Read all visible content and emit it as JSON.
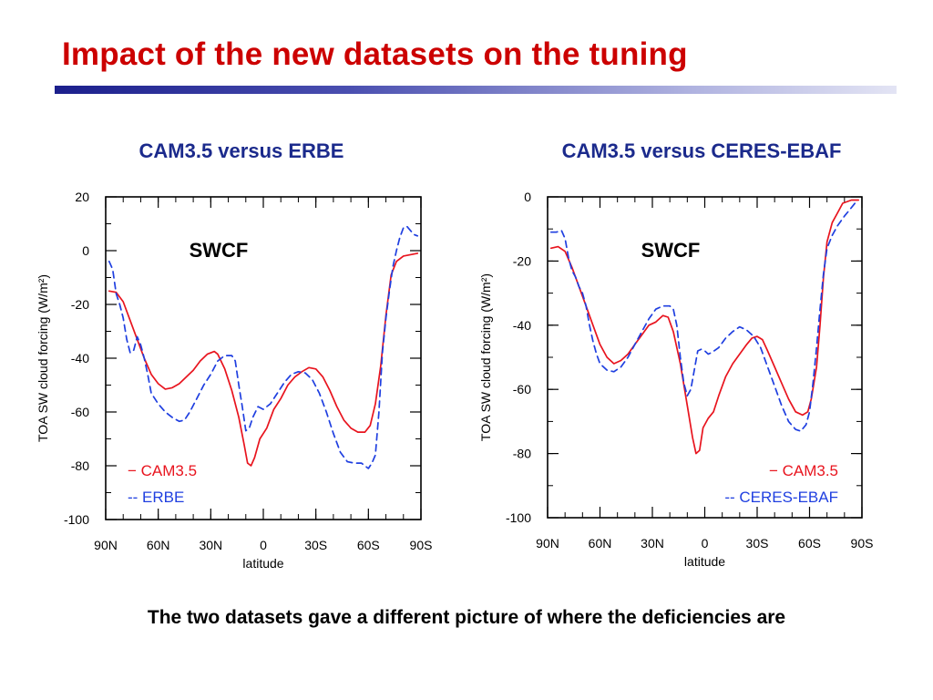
{
  "slide": {
    "title": "Impact of the new datasets on the tuning",
    "caption": "The two datasets gave a different picture of where the deficiencies are"
  },
  "colors": {
    "title": "#cc0000",
    "heading": "#1b2a8c",
    "model_line": "#e8141e",
    "obs_line": "#1f3fe0"
  },
  "panels": [
    {
      "heading": "CAM3.5 versus ERBE"
    },
    {
      "heading": "CAM3.5 versus CERES-EBAF"
    }
  ],
  "chart_data": [
    {
      "type": "line",
      "title": "SWCF",
      "xlabel": "latitude",
      "ylabel": "TOA SW cloud forcing (W/m²)",
      "xlim": [
        90,
        -90
      ],
      "ylim": [
        -100,
        20
      ],
      "xticks": [
        90,
        60,
        30,
        0,
        -30,
        -60,
        -90
      ],
      "xtick_labels": [
        "90N",
        "60N",
        "30N",
        "0",
        "30S",
        "60S",
        "90S"
      ],
      "yticks": [
        20,
        0,
        -20,
        -40,
        -60,
        -80,
        -100
      ],
      "ytick_labels": [
        "20",
        "0",
        "-20",
        "-40",
        "-60",
        "-80",
        "-100"
      ],
      "legend_position": "bottom-left",
      "series": [
        {
          "name": "CAM3.5",
          "legend_label": "− CAM3.5",
          "style": "solid",
          "color": "#e8141e",
          "points": [
            [
              88,
              -15
            ],
            [
              84,
              -15.5
            ],
            [
              80,
              -19
            ],
            [
              76,
              -26
            ],
            [
              72,
              -33
            ],
            [
              68,
              -40
            ],
            [
              64,
              -46
            ],
            [
              60,
              -49.5
            ],
            [
              56,
              -51.5
            ],
            [
              52,
              -51
            ],
            [
              48,
              -49.5
            ],
            [
              44,
              -47
            ],
            [
              40,
              -44.5
            ],
            [
              36,
              -41
            ],
            [
              32,
              -38.5
            ],
            [
              28,
              -37.5
            ],
            [
              26,
              -38.5
            ],
            [
              22,
              -44
            ],
            [
              18,
              -52
            ],
            [
              14,
              -62
            ],
            [
              11,
              -72
            ],
            [
              9,
              -79
            ],
            [
              7,
              -80
            ],
            [
              5,
              -77
            ],
            [
              2,
              -70
            ],
            [
              -2,
              -66
            ],
            [
              -6,
              -59
            ],
            [
              -10,
              -55
            ],
            [
              -14,
              -50
            ],
            [
              -18,
              -47
            ],
            [
              -22,
              -45
            ],
            [
              -26,
              -43.5
            ],
            [
              -30,
              -44
            ],
            [
              -34,
              -47
            ],
            [
              -38,
              -52
            ],
            [
              -42,
              -58
            ],
            [
              -46,
              -63
            ],
            [
              -50,
              -66
            ],
            [
              -54,
              -67.5
            ],
            [
              -58,
              -67.5
            ],
            [
              -61,
              -65
            ],
            [
              -64,
              -57
            ],
            [
              -67,
              -43
            ],
            [
              -70,
              -24
            ],
            [
              -73,
              -9
            ],
            [
              -76,
              -4
            ],
            [
              -80,
              -2
            ],
            [
              -84,
              -1.5
            ],
            [
              -88,
              -1
            ]
          ]
        },
        {
          "name": "ERBE",
          "legend_label": "-- ERBE",
          "style": "dashed",
          "color": "#1f3fe0",
          "points": [
            [
              88,
              -4
            ],
            [
              86,
              -7
            ],
            [
              84,
              -16
            ],
            [
              82,
              -20
            ],
            [
              80,
              -25
            ],
            [
              78,
              -33
            ],
            [
              76,
              -38
            ],
            [
              74,
              -37
            ],
            [
              72,
              -32
            ],
            [
              70,
              -35
            ],
            [
              68,
              -40
            ],
            [
              66,
              -46
            ],
            [
              64,
              -53
            ],
            [
              60,
              -57
            ],
            [
              56,
              -60
            ],
            [
              52,
              -62
            ],
            [
              48,
              -63.5
            ],
            [
              45,
              -63
            ],
            [
              42,
              -60
            ],
            [
              38,
              -55
            ],
            [
              34,
              -50
            ],
            [
              30,
              -46
            ],
            [
              26,
              -41
            ],
            [
              22,
              -39
            ],
            [
              18,
              -39
            ],
            [
              16,
              -41
            ],
            [
              14,
              -50
            ],
            [
              12,
              -58
            ],
            [
              10,
              -67
            ],
            [
              8,
              -66
            ],
            [
              6,
              -62
            ],
            [
              3,
              -58
            ],
            [
              0,
              -59
            ],
            [
              -4,
              -57
            ],
            [
              -8,
              -53
            ],
            [
              -12,
              -49
            ],
            [
              -16,
              -46
            ],
            [
              -20,
              -45
            ],
            [
              -24,
              -45.5
            ],
            [
              -28,
              -48
            ],
            [
              -32,
              -53
            ],
            [
              -36,
              -60
            ],
            [
              -40,
              -68
            ],
            [
              -44,
              -75
            ],
            [
              -48,
              -78.5
            ],
            [
              -52,
              -79
            ],
            [
              -56,
              -79
            ],
            [
              -58,
              -80
            ],
            [
              -60,
              -81
            ],
            [
              -62,
              -79
            ],
            [
              -64,
              -76
            ],
            [
              -66,
              -60
            ],
            [
              -68,
              -38
            ],
            [
              -70,
              -25
            ],
            [
              -72,
              -15
            ],
            [
              -74,
              -6
            ],
            [
              -76,
              0
            ],
            [
              -78,
              5
            ],
            [
              -80,
              8.5
            ],
            [
              -82,
              9
            ],
            [
              -84,
              7.5
            ],
            [
              -86,
              6
            ],
            [
              -88,
              5.5
            ]
          ]
        }
      ]
    },
    {
      "type": "line",
      "title": "SWCF",
      "xlabel": "latitude",
      "ylabel": "TOA SW cloud forcing (W/m²)",
      "xlim": [
        90,
        -90
      ],
      "ylim": [
        -100,
        0
      ],
      "xticks": [
        90,
        60,
        30,
        0,
        -30,
        -60,
        -90
      ],
      "xtick_labels": [
        "90N",
        "60N",
        "30N",
        "0",
        "30S",
        "60S",
        "90S"
      ],
      "yticks": [
        0,
        -20,
        -40,
        -60,
        -80,
        -100
      ],
      "ytick_labels": [
        "0",
        "-20",
        "-40",
        "-60",
        "-80",
        "-100"
      ],
      "legend_position": "bottom-right",
      "series": [
        {
          "name": "CAM3.5",
          "legend_label": "− CAM3.5",
          "style": "solid",
          "color": "#e8141e",
          "points": [
            [
              88,
              -16
            ],
            [
              84,
              -15.5
            ],
            [
              80,
              -17
            ],
            [
              76,
              -22
            ],
            [
              72,
              -28
            ],
            [
              68,
              -34
            ],
            [
              64,
              -40
            ],
            [
              60,
              -46
            ],
            [
              56,
              -50
            ],
            [
              52,
              -52
            ],
            [
              48,
              -51
            ],
            [
              44,
              -49
            ],
            [
              40,
              -46
            ],
            [
              36,
              -43
            ],
            [
              32,
              -40
            ],
            [
              28,
              -39
            ],
            [
              24,
              -37
            ],
            [
              21,
              -37.5
            ],
            [
              18,
              -42
            ],
            [
              14,
              -52
            ],
            [
              10,
              -65
            ],
            [
              7,
              -75
            ],
            [
              5,
              -80
            ],
            [
              3,
              -79
            ],
            [
              1,
              -72
            ],
            [
              -2,
              -69
            ],
            [
              -5,
              -67
            ],
            [
              -8,
              -62
            ],
            [
              -12,
              -56
            ],
            [
              -16,
              -52
            ],
            [
              -20,
              -49
            ],
            [
              -24,
              -46
            ],
            [
              -27,
              -44
            ],
            [
              -30,
              -43.5
            ],
            [
              -33,
              -44.5
            ],
            [
              -36,
              -48
            ],
            [
              -40,
              -53
            ],
            [
              -44,
              -58
            ],
            [
              -48,
              -63
            ],
            [
              -52,
              -67
            ],
            [
              -56,
              -68
            ],
            [
              -59,
              -67
            ],
            [
              -61,
              -63
            ],
            [
              -64,
              -53
            ],
            [
              -66,
              -40
            ],
            [
              -68,
              -25
            ],
            [
              -70,
              -14
            ],
            [
              -73,
              -8
            ],
            [
              -76,
              -5
            ],
            [
              -79,
              -2
            ],
            [
              -84,
              -1
            ],
            [
              -88,
              -1
            ]
          ]
        },
        {
          "name": "CERES-EBAF",
          "legend_label": "-- CERES-EBAF",
          "style": "dashed",
          "color": "#1f3fe0",
          "points": [
            [
              88,
              -11
            ],
            [
              85,
              -11
            ],
            [
              82,
              -10.5
            ],
            [
              80,
              -13
            ],
            [
              78,
              -19
            ],
            [
              76,
              -23
            ],
            [
              74,
              -25
            ],
            [
              72,
              -28
            ],
            [
              70,
              -30
            ],
            [
              68,
              -34
            ],
            [
              66,
              -40
            ],
            [
              64,
              -45
            ],
            [
              62,
              -49
            ],
            [
              60,
              -52
            ],
            [
              56,
              -54
            ],
            [
              52,
              -54.5
            ],
            [
              48,
              -53
            ],
            [
              44,
              -50
            ],
            [
              40,
              -46
            ],
            [
              36,
              -42
            ],
            [
              32,
              -38
            ],
            [
              28,
              -35
            ],
            [
              24,
              -34
            ],
            [
              20,
              -34
            ],
            [
              18,
              -35
            ],
            [
              16,
              -40
            ],
            [
              14,
              -50
            ],
            [
              12,
              -58
            ],
            [
              10,
              -62
            ],
            [
              8,
              -60
            ],
            [
              6,
              -54
            ],
            [
              4,
              -48
            ],
            [
              2,
              -47.5
            ],
            [
              0,
              -48
            ],
            [
              -2,
              -49
            ],
            [
              -4,
              -48.5
            ],
            [
              -8,
              -47
            ],
            [
              -12,
              -44
            ],
            [
              -16,
              -42
            ],
            [
              -20,
              -40.5
            ],
            [
              -24,
              -41.5
            ],
            [
              -28,
              -43.5
            ],
            [
              -32,
              -47
            ],
            [
              -36,
              -53
            ],
            [
              -40,
              -59
            ],
            [
              -44,
              -65
            ],
            [
              -48,
              -70
            ],
            [
              -52,
              -72.5
            ],
            [
              -55,
              -73
            ],
            [
              -58,
              -71
            ],
            [
              -60,
              -67
            ],
            [
              -62,
              -58
            ],
            [
              -64,
              -47
            ],
            [
              -66,
              -35
            ],
            [
              -68,
              -24
            ],
            [
              -70,
              -16
            ],
            [
              -73,
              -12
            ],
            [
              -76,
              -9
            ],
            [
              -80,
              -6
            ],
            [
              -83,
              -4
            ],
            [
              -86,
              -2
            ],
            [
              -88,
              -2.5
            ]
          ]
        }
      ]
    }
  ]
}
